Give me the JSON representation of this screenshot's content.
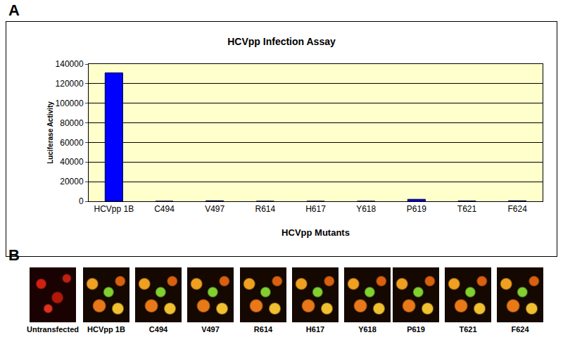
{
  "chart_data": {
    "type": "bar",
    "title": "HCVpp Infection Assay",
    "x_label": "HCVpp Mutants",
    "y_label": "Luciferase Activity",
    "categories": [
      "HCVpp 1B",
      "C494",
      "V497",
      "R614",
      "H617",
      "Y618",
      "P619",
      "T621",
      "F624"
    ],
    "values": [
      131000,
      0,
      500,
      0,
      0,
      0,
      2000,
      300,
      500
    ],
    "color": "#0000ff",
    "ylim": [
      0,
      140000
    ],
    "yticks": [
      0,
      20000,
      40000,
      60000,
      80000,
      100000,
      120000,
      140000
    ],
    "grid": true
  },
  "panel_labels": [
    "A",
    "B"
  ],
  "image_strip": {
    "captions": [
      "Untransfected",
      "HCVpp 1B",
      "C494",
      "V497",
      "R614",
      "H617",
      "Y618",
      "P619",
      "T621",
      "F624"
    ]
  }
}
